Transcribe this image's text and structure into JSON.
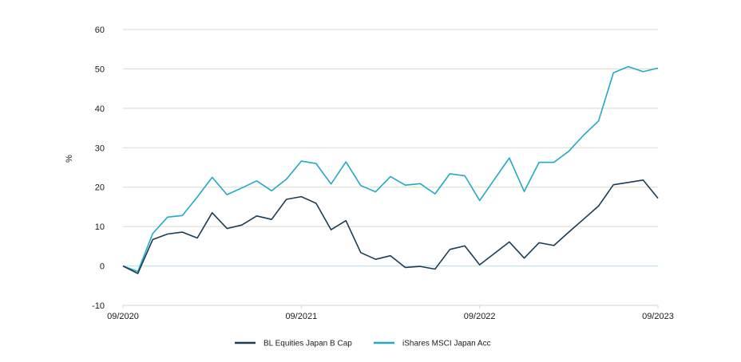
{
  "chart_data": {
    "type": "line",
    "ylabel": "%",
    "ylim": [
      -10,
      60
    ],
    "yticks": [
      -10,
      0,
      10,
      20,
      30,
      40,
      50,
      60
    ],
    "x_range": [
      "2020-09",
      "2023-09"
    ],
    "xticks": [
      "09/2020",
      "09/2021",
      "09/2022",
      "09/2023"
    ],
    "grid": "horizontal",
    "legend_position": "bottom",
    "x": [
      "2020-09",
      "2020-10",
      "2020-11",
      "2020-12",
      "2021-01",
      "2021-02",
      "2021-03",
      "2021-04",
      "2021-05",
      "2021-06",
      "2021-07",
      "2021-08",
      "2021-09",
      "2021-10",
      "2021-11",
      "2021-12",
      "2022-01",
      "2022-02",
      "2022-03",
      "2022-04",
      "2022-05",
      "2022-06",
      "2022-07",
      "2022-08",
      "2022-09",
      "2022-10",
      "2022-11",
      "2022-12",
      "2023-01",
      "2023-02",
      "2023-03",
      "2023-04",
      "2023-05",
      "2023-06",
      "2023-07",
      "2023-08",
      "2023-09"
    ],
    "series": [
      {
        "name": "BL Equities Japan B Cap",
        "color": "#1a3d55",
        "values": [
          0,
          -1.9,
          6.7,
          8.1,
          8.6,
          7.1,
          13.5,
          9.5,
          10.4,
          12.7,
          11.8,
          16.9,
          17.6,
          15.9,
          9.2,
          11.5,
          3.4,
          1.7,
          2.6,
          -0.4,
          -0.1,
          -0.8,
          4.2,
          5.1,
          0.3,
          3.2,
          6.1,
          2.0,
          5.9,
          5.2,
          8.6,
          11.9,
          15.2,
          20.6,
          21.2,
          21.8,
          17.2
        ]
      },
      {
        "name": "iShares MSCI Japan Acc",
        "color": "#1faac6",
        "values": [
          0,
          -1.4,
          8.2,
          12.4,
          12.8,
          17.5,
          22.5,
          18.1,
          19.8,
          21.6,
          19.1,
          22.0,
          26.6,
          26.0,
          20.8,
          26.4,
          20.4,
          18.8,
          22.7,
          20.5,
          20.9,
          18.3,
          23.4,
          22.9,
          16.6,
          22.0,
          27.4,
          18.9,
          26.3,
          26.3,
          29.1,
          33.2,
          36.8,
          49.0,
          50.6,
          49.3,
          50.2
        ]
      }
    ]
  },
  "colors": {
    "grid": "#dcd8c6",
    "zero_line": "#b7e0ea",
    "axis": "#d9d6c5"
  }
}
